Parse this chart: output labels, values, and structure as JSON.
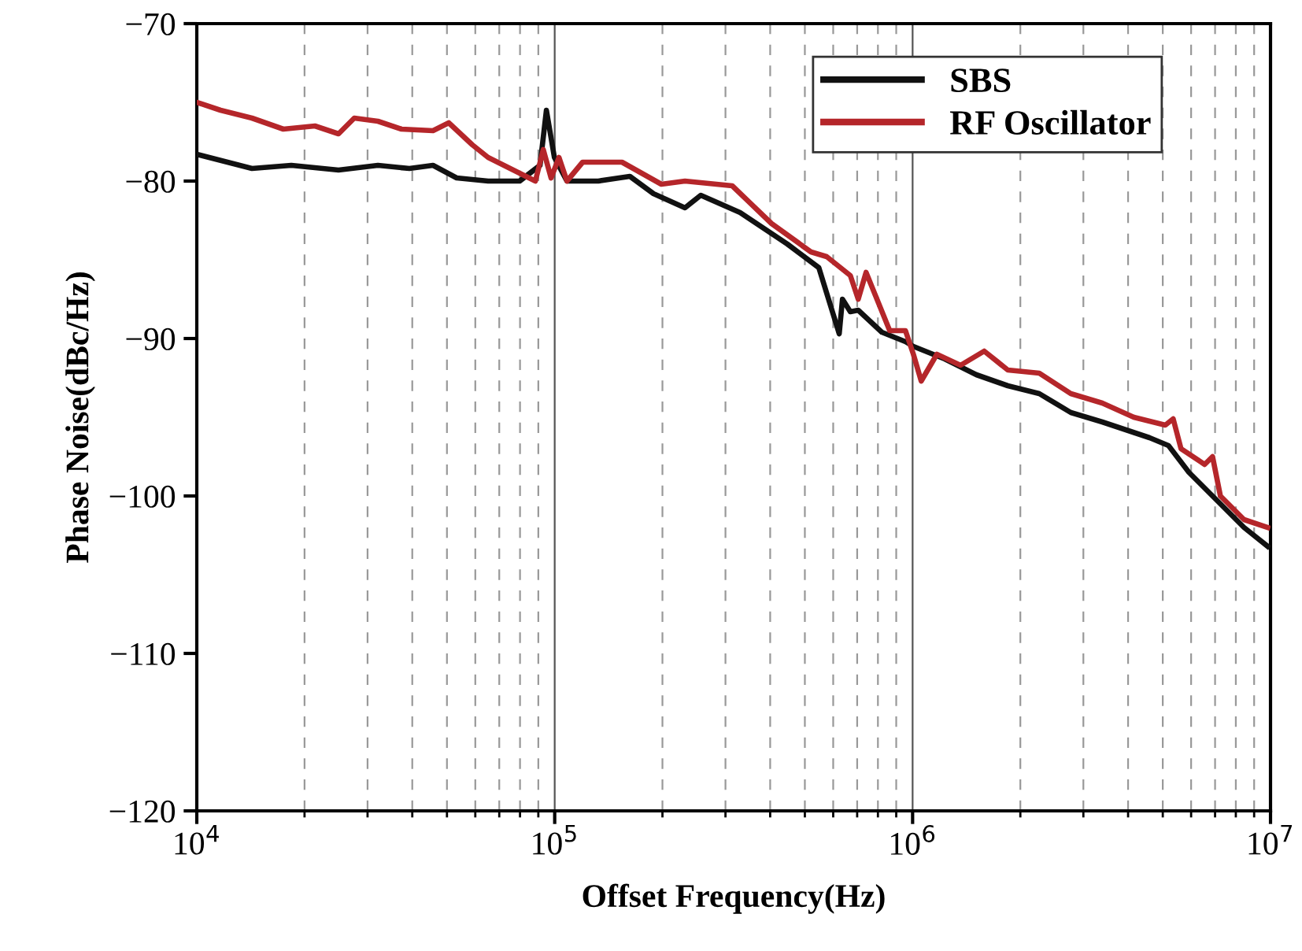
{
  "chart_data": {
    "type": "line",
    "xlabel": "Offset Frequency(Hz)",
    "ylabel": "Phase Noise(dBc/Hz)",
    "log": "x",
    "grid": "x",
    "legend": "top right",
    "marker": "none",
    "line_style": "solid",
    "xlim": [
      10000,
      10000000
    ],
    "xticks": [
      {
        "value": 10000,
        "label": "10$^{4}$"
      },
      {
        "value": 100000,
        "label": "10$^{5}$"
      },
      {
        "value": 1000000,
        "label": "10$^{6}$"
      },
      {
        "value": 10000000,
        "label": "10$^{7}$"
      }
    ],
    "ylim": [
      -120,
      -70
    ],
    "yticks": [
      {
        "value": -120,
        "label": "−120"
      },
      {
        "value": -110,
        "label": "−110"
      },
      {
        "value": -100,
        "label": "−100"
      },
      {
        "value": -90,
        "label": "−90"
      },
      {
        "value": -80,
        "label": "−80"
      },
      {
        "value": -70,
        "label": "−70"
      }
    ],
    "series": [
      {
        "name": "SBS",
        "color": "#111111",
        "x": [
          10000,
          14260,
          18370,
          24890,
          32070,
          39270,
          45710,
          53210,
          65160,
          79800,
          91000,
          94800,
          99800,
          108200,
          132400,
          162200,
          188800,
          231200,
          255900,
          329600,
          446700,
          547000,
          623700,
          636800,
          669900,
          704700,
          820400,
          955000,
          1005000,
          1230000,
          1507000,
          1845000,
          2259000,
          2767000,
          3388000,
          4592000,
          5188000,
          5916000,
          7244000,
          8433000,
          9820000
        ],
        "values": [
          -78.3,
          -79.2,
          -79.0,
          -79.3,
          -79.0,
          -79.2,
          -79.0,
          -79.8,
          -80.0,
          -80.0,
          -79.0,
          -75.5,
          -78.5,
          -80.0,
          -80.0,
          -79.7,
          -80.8,
          -81.7,
          -80.9,
          -82.0,
          -84.0,
          -85.5,
          -89.7,
          -87.5,
          -88.3,
          -88.2,
          -89.6,
          -90.2,
          -90.5,
          -91.3,
          -92.3,
          -93.0,
          -93.5,
          -94.7,
          -95.3,
          -96.3,
          -96.8,
          -98.5,
          -100.5,
          -102.0,
          -103.2
        ]
      },
      {
        "name": "RF Oscillator",
        "color": "#b5262a",
        "x": [
          10000,
          11650,
          14260,
          17450,
          21380,
          24890,
          27540,
          32070,
          37330,
          45710,
          50580,
          58880,
          65160,
          72110,
          79800,
          88310,
          92900,
          97700,
          102800,
          108200,
          119700,
          154200,
          198600,
          231200,
          313300,
          403600,
          520000,
          575400,
          669900,
          704700,
          741300,
          863000,
          955000,
          1005000,
          1057000,
          1169000,
          1361000,
          1585000,
          1845000,
          2259000,
          2767000,
          3388000,
          4150000,
          5082000,
          5346000,
          5623000,
          6546000,
          6887000,
          7244000,
          8433000,
          9820000
        ],
        "values": [
          -75.0,
          -75.5,
          -76.0,
          -76.7,
          -76.5,
          -77.0,
          -76.0,
          -76.2,
          -76.7,
          -76.8,
          -76.3,
          -77.7,
          -78.5,
          -79.0,
          -79.5,
          -80.0,
          -78.0,
          -79.8,
          -78.5,
          -80.0,
          -78.8,
          -78.8,
          -80.2,
          -80.0,
          -80.3,
          -82.7,
          -84.5,
          -84.8,
          -86.0,
          -87.5,
          -85.8,
          -89.5,
          -89.5,
          -91.0,
          -92.7,
          -91.0,
          -91.7,
          -90.8,
          -92.0,
          -92.2,
          -93.5,
          -94.1,
          -95.0,
          -95.5,
          -95.1,
          -97.0,
          -98.0,
          -97.5,
          -100.0,
          -101.5,
          -102.0
        ]
      }
    ]
  }
}
